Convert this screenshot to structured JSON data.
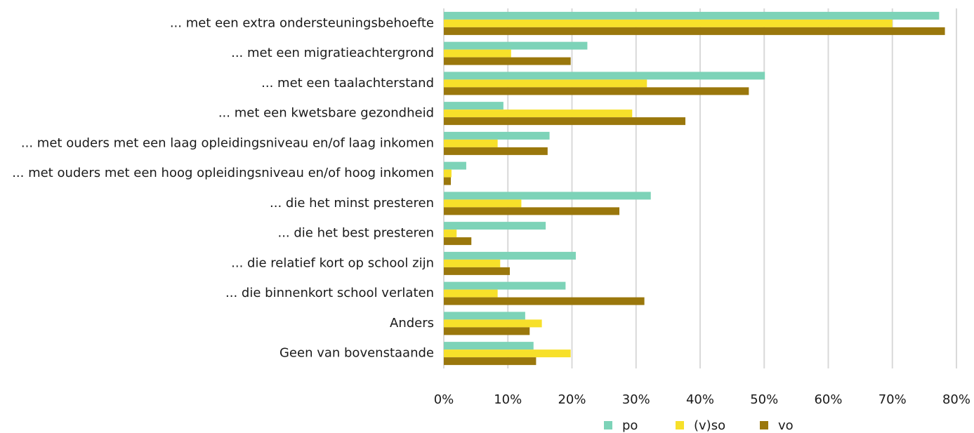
{
  "chart_data": {
    "type": "hbar",
    "categories": [
      "... met een extra ondersteuningsbehoefte",
      "... met een migratieachtergrond",
      "... met een taalachterstand",
      "... met een kwetsbare gezondheid",
      "... met ouders met een laag opleidingsniveau en/of laag inkomen",
      "... met ouders met een hoog opleidingsniveau en/of hoog inkomen",
      "... die het minst presteren",
      "... die het best presteren",
      "... die relatief kort op school zijn",
      "... die binnenkort school verlaten",
      "Anders",
      "Geen van bovenstaande"
    ],
    "series": [
      {
        "name": "po",
        "color": "#7dd3b8",
        "values": [
          77.3,
          22.4,
          50.1,
          9.3,
          16.5,
          3.5,
          32.3,
          15.9,
          20.6,
          19.0,
          12.7,
          14.0
        ]
      },
      {
        "name": "(v)so",
        "color": "#f7e02a",
        "values": [
          70.0,
          10.5,
          31.7,
          29.4,
          8.4,
          1.2,
          12.1,
          2.0,
          8.8,
          8.4,
          15.3,
          19.8
        ]
      },
      {
        "name": "vo",
        "color": "#9a770c",
        "values": [
          78.2,
          19.8,
          47.6,
          37.7,
          16.2,
          1.1,
          27.4,
          4.3,
          10.3,
          31.3,
          13.4,
          14.4
        ]
      }
    ],
    "xlim": [
      0,
      80
    ],
    "xticks": [
      {
        "value": 0,
        "label": "0%"
      },
      {
        "value": 10,
        "label": "10%"
      },
      {
        "value": 20,
        "label": "20%"
      },
      {
        "value": 30,
        "label": "30%"
      },
      {
        "value": 40,
        "label": "40%"
      },
      {
        "value": 50,
        "label": "50%"
      },
      {
        "value": 60,
        "label": "60%"
      },
      {
        "value": 70,
        "label": "70%"
      },
      {
        "value": 80,
        "label": "80%"
      }
    ],
    "grid": true,
    "legend": "bottom"
  }
}
